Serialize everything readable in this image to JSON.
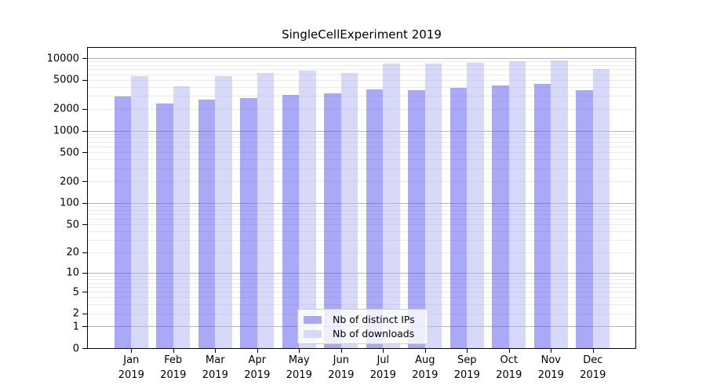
{
  "chart_data": {
    "type": "bar",
    "title": "SingleCellExperiment 2019",
    "year": "2019",
    "months": [
      "Jan",
      "Feb",
      "Mar",
      "Apr",
      "May",
      "Jun",
      "Jul",
      "Aug",
      "Sep",
      "Oct",
      "Nov",
      "Dec"
    ],
    "series": [
      {
        "name": "Nb of distinct IPs",
        "values": [
          2965,
          2370,
          2645,
          2825,
          3120,
          3250,
          3655,
          3565,
          3845,
          4140,
          4420,
          3620
        ],
        "bar_fill": "rgba(83,83,239,0.5)",
        "swatch": "#a9a9f7"
      },
      {
        "name": "Nb of downloads",
        "values": [
          5620,
          4100,
          5620,
          6165,
          6690,
          6310,
          8510,
          8370,
          8570,
          9010,
          9400,
          7150
        ],
        "bar_fill": "rgba(177,177,243,0.5)",
        "swatch": "#d8d8f9"
      }
    ],
    "yscale": "log10(value+1)",
    "ylim": [
      0,
      14500
    ],
    "y_ticks": [
      10000,
      5000,
      2000,
      1000,
      500,
      200,
      100,
      50,
      20,
      10,
      5,
      2,
      1,
      0
    ],
    "grid": true,
    "legend_position": "lower center",
    "colors": {
      "grid_major": "#b4b4b4",
      "grid_minor": "#eaeaea",
      "axis": "#000000",
      "legend_border": "#cccccc",
      "legend_bg": "rgba(255,255,255,0.8)"
    }
  }
}
